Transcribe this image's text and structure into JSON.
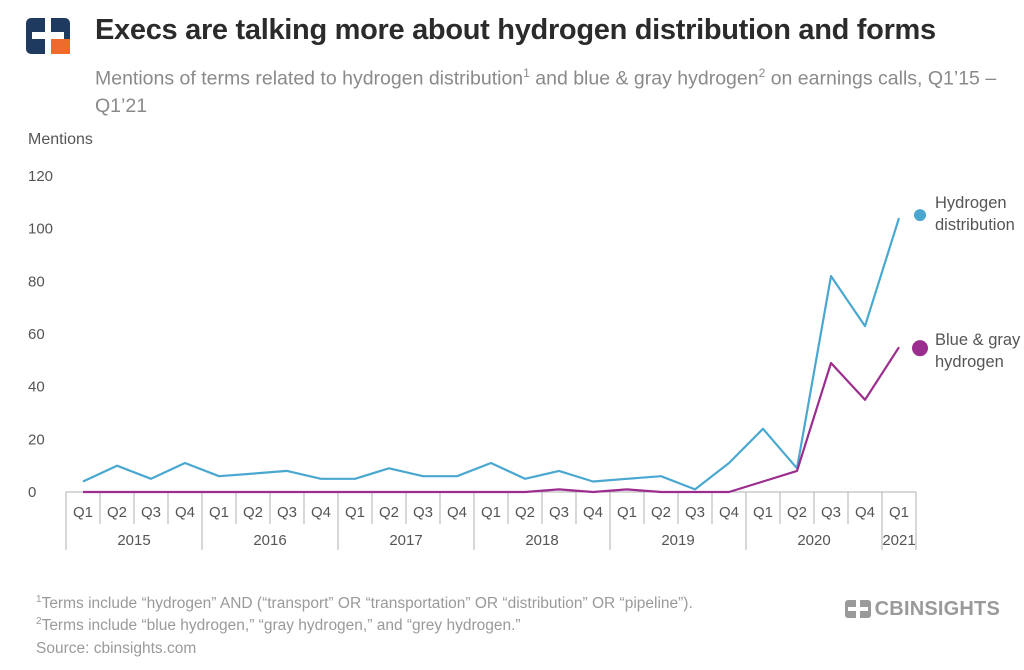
{
  "header": {
    "title": "Execs are talking more about hydrogen distribution and forms",
    "subtitle_part1": "Mentions of terms related to hydrogen distribution",
    "subtitle_sup1": "1",
    "subtitle_part2": " and blue & gray hydrogen",
    "subtitle_sup2": "2",
    "subtitle_part3": " on earnings calls, Q1’15 – Q1’21"
  },
  "chart_data": {
    "type": "line",
    "ylabel": "Mentions",
    "ylim": [
      0,
      120
    ],
    "yticks": [
      0,
      20,
      40,
      60,
      80,
      100,
      120
    ],
    "grid": false,
    "categories": [
      "Q1 2015",
      "Q2 2015",
      "Q3 2015",
      "Q4 2015",
      "Q1 2016",
      "Q2 2016",
      "Q3 2016",
      "Q4 2016",
      "Q1 2017",
      "Q2 2017",
      "Q3 2017",
      "Q4 2017",
      "Q1 2018",
      "Q2 2018",
      "Q3 2018",
      "Q4 2018",
      "Q1 2019",
      "Q2 2019",
      "Q3 2019",
      "Q4 2019",
      "Q1 2020",
      "Q2 2020",
      "Q3 2020",
      "Q4 2020",
      "Q1 2021"
    ],
    "quarter_labels": [
      "Q1",
      "Q2",
      "Q3",
      "Q4",
      "Q1",
      "Q2",
      "Q3",
      "Q4",
      "Q1",
      "Q2",
      "Q3",
      "Q4",
      "Q1",
      "Q2",
      "Q3",
      "Q4",
      "Q1",
      "Q2",
      "Q3",
      "Q4",
      "Q1",
      "Q2",
      "Q3",
      "Q4",
      "Q1"
    ],
    "year_groups": [
      {
        "label": "2015",
        "count": 4
      },
      {
        "label": "2016",
        "count": 4
      },
      {
        "label": "2017",
        "count": 4
      },
      {
        "label": "2018",
        "count": 4
      },
      {
        "label": "2019",
        "count": 4
      },
      {
        "label": "2020",
        "count": 4
      },
      {
        "label": "2021",
        "count": 1
      }
    ],
    "series": [
      {
        "name": "Hydrogen distribution",
        "color": "#4aa8d0",
        "values": [
          4,
          10,
          5,
          11,
          6,
          7,
          8,
          5,
          5,
          9,
          6,
          6,
          11,
          5,
          8,
          4,
          5,
          6,
          1,
          11,
          24,
          9,
          82,
          63,
          104
        ]
      },
      {
        "name": "Blue & gray hydrogen",
        "color": "#9b2d8e",
        "values": [
          0,
          0,
          0,
          0,
          0,
          0,
          0,
          0,
          0,
          0,
          0,
          0,
          0,
          0,
          1,
          0,
          1,
          0,
          0,
          0,
          4,
          8,
          49,
          35,
          55
        ]
      }
    ],
    "legend": [
      {
        "line1": "Hydrogen",
        "line2": "distribution",
        "color": "#4aa8d0"
      },
      {
        "line1": "Blue & gray",
        "line2": "hydrogen",
        "color": "#9b2d8e"
      }
    ],
    "legend_placement": "right"
  },
  "footnotes": {
    "note1_sup": "1",
    "note1": "Terms include “hydrogen” AND (“transport” OR “transportation” OR “distribution” OR “pipeline”).",
    "note2_sup": "2",
    "note2": "Terms include “blue hydrogen,” “gray hydrogen,” and “grey hydrogen.”",
    "source": "Source: cbinsights.com"
  },
  "brand": {
    "wordmark": "CBINSIGHTS",
    "logo_dark": "#1f3a5f",
    "logo_accent": "#ee6b2d",
    "mark_gray": "#9a9a9a"
  }
}
